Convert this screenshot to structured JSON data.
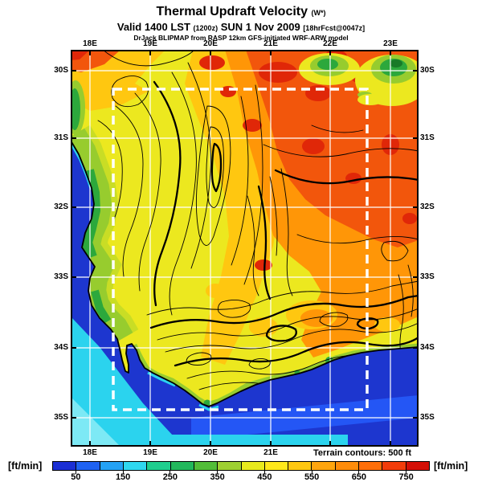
{
  "header": {
    "title": "Thermal Updraft Velocity",
    "title_suffix": "(W*)",
    "valid": {
      "part1": "Valid 1400 LST",
      "zulu": "(1200z)",
      "part2": "SUN 1 Nov 2009",
      "fcst": "[18hrFcst@0047z]"
    },
    "model_line": "DrJack BLIPMAP from RASP 12km GFS-initiated WRF-ARW model"
  },
  "map": {
    "top_lon_labels": [
      "18E",
      "19E",
      "20E",
      "21E",
      "22E",
      "23E"
    ],
    "bottom_lon_labels": [
      "18E",
      "19E",
      "20E",
      "21E"
    ],
    "left_lat_labels": [
      "30S",
      "31S",
      "32S",
      "33S",
      "34S",
      "35S"
    ],
    "right_lat_labels": [
      "30S",
      "31S",
      "32S",
      "33S",
      "34S",
      "35S"
    ],
    "note": "Terrain contours: 500 ft"
  },
  "colorbar": {
    "unit_left": "[ft/min]",
    "unit_right": "[ft/min]",
    "tick_labels": [
      "50",
      "150",
      "250",
      "350",
      "450",
      "550",
      "650",
      "750"
    ],
    "colors": [
      "#1b2fd4",
      "#1f62f2",
      "#24a2f5",
      "#2fd8f0",
      "#1fce8e",
      "#22b85c",
      "#52bd38",
      "#9ed032",
      "#e8ea1c",
      "#ffe81a",
      "#ffc710",
      "#ffa50e",
      "#ff8c0a",
      "#ff6e08",
      "#f23c0a",
      "#d40f06"
    ]
  },
  "palette": {
    "ocean": "#1d36cf",
    "ocean2": "#2456f5",
    "cyan": "#2bd3ee",
    "cyan_light": "#7de9f5",
    "land_yellow": "#ece81f",
    "gold": "#ffc710",
    "orange": "#ff9607",
    "orange_deep": "#f2560c",
    "red": "#e02708",
    "green_dark": "#187a28",
    "green": "#2ca83c",
    "green_light": "#97cc2e",
    "green_pale": "#c9dd25",
    "grid": "#ffffff",
    "contour": "#000000",
    "domain_box": "#ffffff"
  }
}
